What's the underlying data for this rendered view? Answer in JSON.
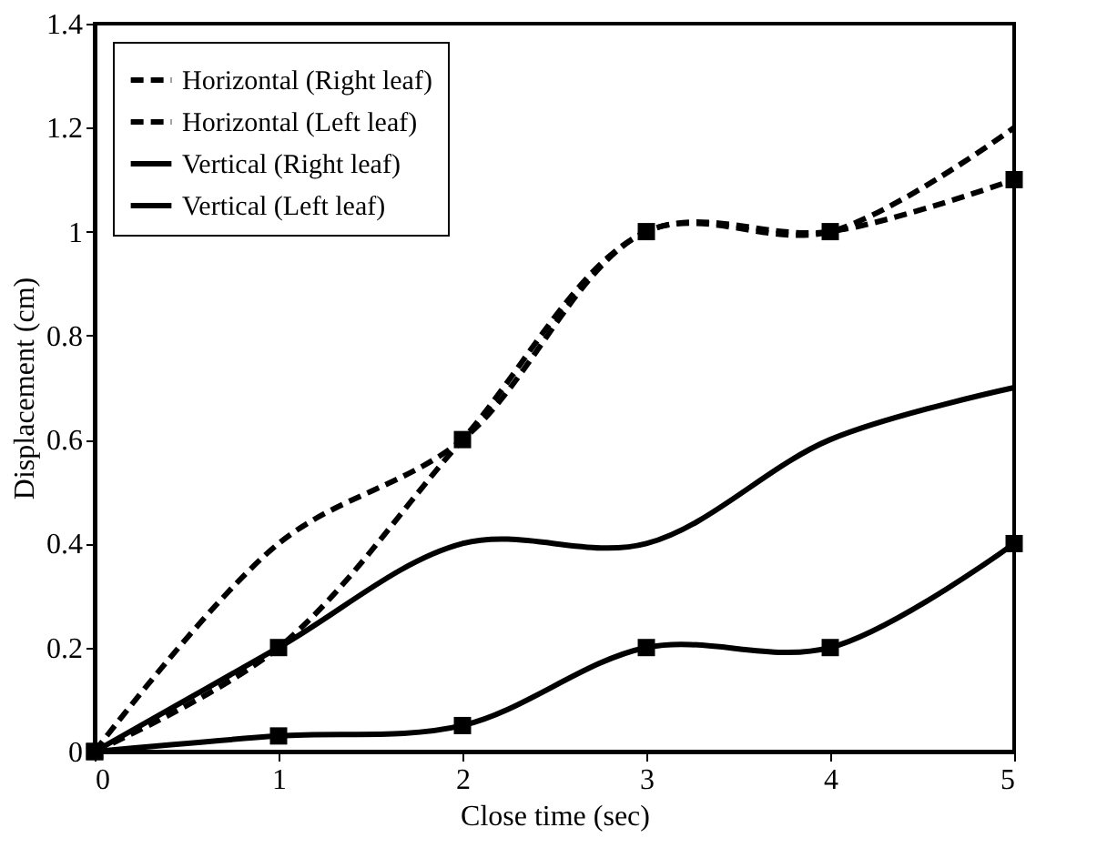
{
  "chart_data": {
    "type": "line",
    "xlabel": "Close time (sec)",
    "ylabel": "Displacement (cm)",
    "x": [
      0,
      1,
      2,
      3,
      4,
      5
    ],
    "series": [
      {
        "name": "Horizontal (Right leaf)",
        "color": "#000000",
        "line_style": "dashed",
        "values": [
          0,
          0.4,
          0.6,
          1.0,
          1.0,
          1.2
        ]
      },
      {
        "name": "Horizontal (Left leaf)",
        "color": "#000000",
        "line_style": "dashed",
        "marker": "square",
        "values": [
          0,
          0.2,
          0.6,
          1.0,
          1.0,
          1.1
        ]
      },
      {
        "name": "Vertical (Right leaf)",
        "color": "#000000",
        "line_style": "solid",
        "values": [
          0,
          0.2,
          0.4,
          0.4,
          0.6,
          0.7
        ]
      },
      {
        "name": "Vertical (Left leaf)",
        "color": "#000000",
        "line_style": "solid",
        "marker": "square",
        "values": [
          0,
          0.03,
          0.05,
          0.2,
          0.2,
          0.4
        ]
      }
    ],
    "xlim": [
      0,
      5
    ],
    "xticks": [
      0,
      1,
      2,
      3,
      4,
      5
    ],
    "ylim": [
      0,
      1.4
    ],
    "yticks": [
      0,
      0.2,
      0.4,
      0.6,
      0.8,
      1,
      1.2,
      1.4
    ],
    "grid": false,
    "legend": "top left"
  }
}
